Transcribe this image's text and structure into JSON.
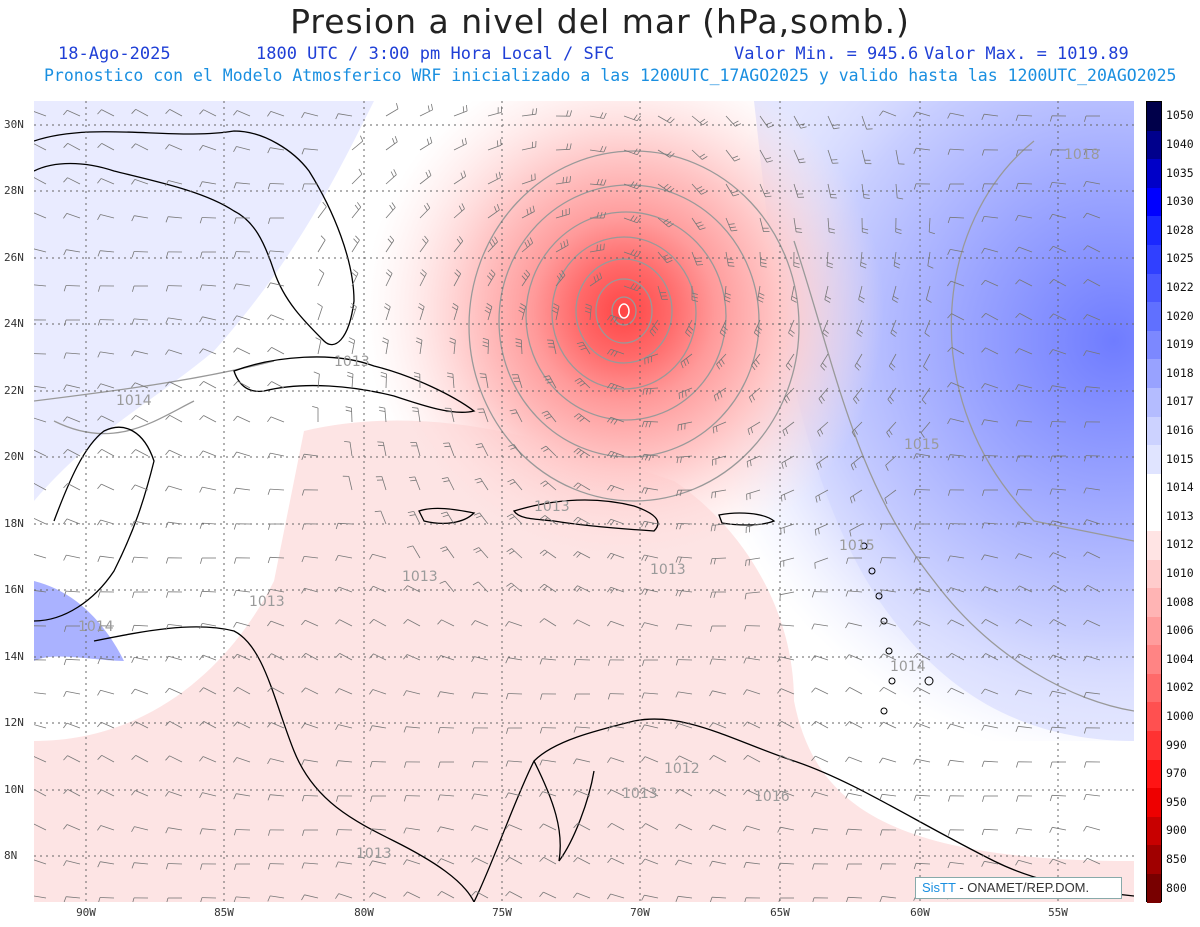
{
  "title": "Presion a nivel del mar (hPa,somb.)",
  "date": "18-Ago-2025",
  "time_info": "1800 UTC / 3:00 pm Hora Local / SFC",
  "min_label": "Valor Min. = 945.6",
  "max_label": "Valor Max. = 1019.89",
  "model_info": "Pronostico con el Modelo Atmosferico WRF inicializado a las 1200UTC_17AGO2025 y valido hasta las  1200UTC_20AGO2025",
  "lat_labels": [
    "30N",
    "28N",
    "26N",
    "24N",
    "22N",
    "20N",
    "18N",
    "16N",
    "14N",
    "12N",
    "10N",
    "8N"
  ],
  "lon_labels": [
    "90W",
    "85W",
    "80W",
    "75W",
    "70W",
    "65W",
    "60W",
    "55W"
  ],
  "colorbar": {
    "levels": [
      "1050",
      "1040",
      "1035",
      "1030",
      "1028",
      "1025",
      "1022",
      "1020",
      "1019",
      "1018",
      "1017",
      "1016",
      "1015",
      "1014",
      "1013",
      "1012",
      "1010",
      "1008",
      "1006",
      "1004",
      "1002",
      "1000",
      "990",
      "970",
      "950",
      "900",
      "850",
      "800"
    ],
    "colors": [
      "#00004a",
      "#00008c",
      "#0000c8",
      "#0000ff",
      "#1a28ff",
      "#3040ff",
      "#4a58ff",
      "#6070ff",
      "#7c88ff",
      "#98a2ff",
      "#b4bcff",
      "#ccd2ff",
      "#e0e4ff",
      "#ffffff",
      "#ffffff",
      "#ffe4e4",
      "#ffcccc",
      "#ffb4b4",
      "#ff9c9c",
      "#ff8484",
      "#ff6a6a",
      "#ff5050",
      "#ff3232",
      "#ff1414",
      "#ee0000",
      "#c80000",
      "#a00000",
      "#780000"
    ]
  },
  "contour_labels": [
    "1018",
    "1013",
    "1014",
    "1013",
    "1014",
    "1015",
    "1013",
    "1013",
    "1012",
    "1013",
    "1014",
    "1015",
    "1013",
    "1013",
    "1016"
  ],
  "credit_sis": "SisTT",
  "credit_text": "- ONAMET/REP.DOM.",
  "colors": {
    "title": "#222222",
    "date_line": "#1f3fd6",
    "model_line": "#1a8fe0",
    "low_center": "#ff4040",
    "high": "#7c88ff"
  }
}
